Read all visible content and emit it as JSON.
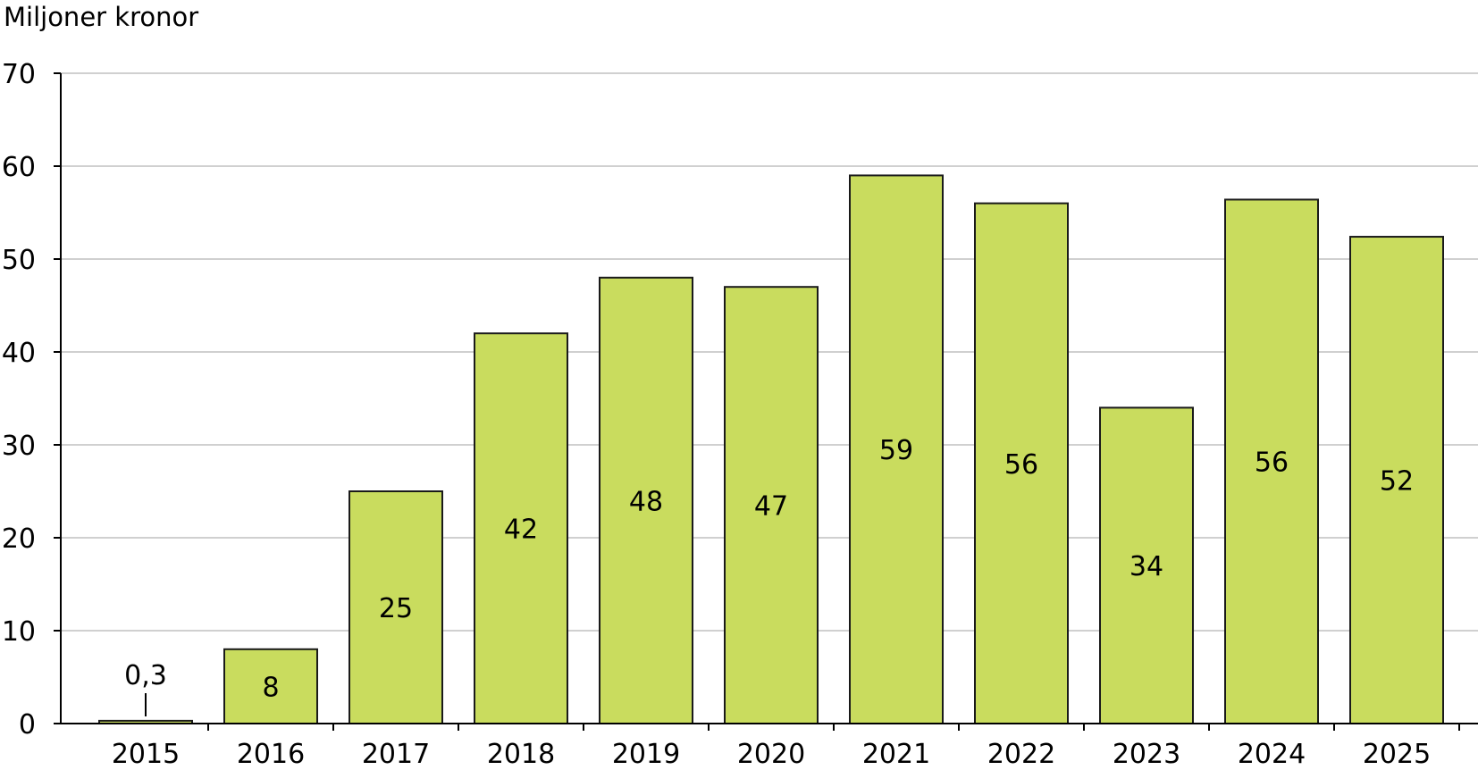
{
  "chart_data": {
    "type": "bar",
    "ylabel": "Miljoner kronor",
    "title": "",
    "xlabel": "",
    "ylim": [
      0,
      70
    ],
    "yticks": [
      0,
      10,
      20,
      30,
      40,
      50,
      60,
      70
    ],
    "grid": true,
    "categories": [
      "2015",
      "2016",
      "2017",
      "2018",
      "2019",
      "2020",
      "2021",
      "2022",
      "2023",
      "2024",
      "2025"
    ],
    "series": [
      {
        "values": [
          0.3,
          8,
          25,
          42,
          48,
          47,
          59,
          56,
          34,
          56.4,
          52.4
        ],
        "labels": [
          "0,3",
          "8",
          "25",
          "42",
          "48",
          "47",
          "59",
          "56",
          "34",
          "56",
          "52"
        ]
      }
    ],
    "colors": {
      "bar": "#c9dc5e",
      "bar_edge": "#1a1a1a",
      "grid": "#b4b4b4"
    }
  }
}
